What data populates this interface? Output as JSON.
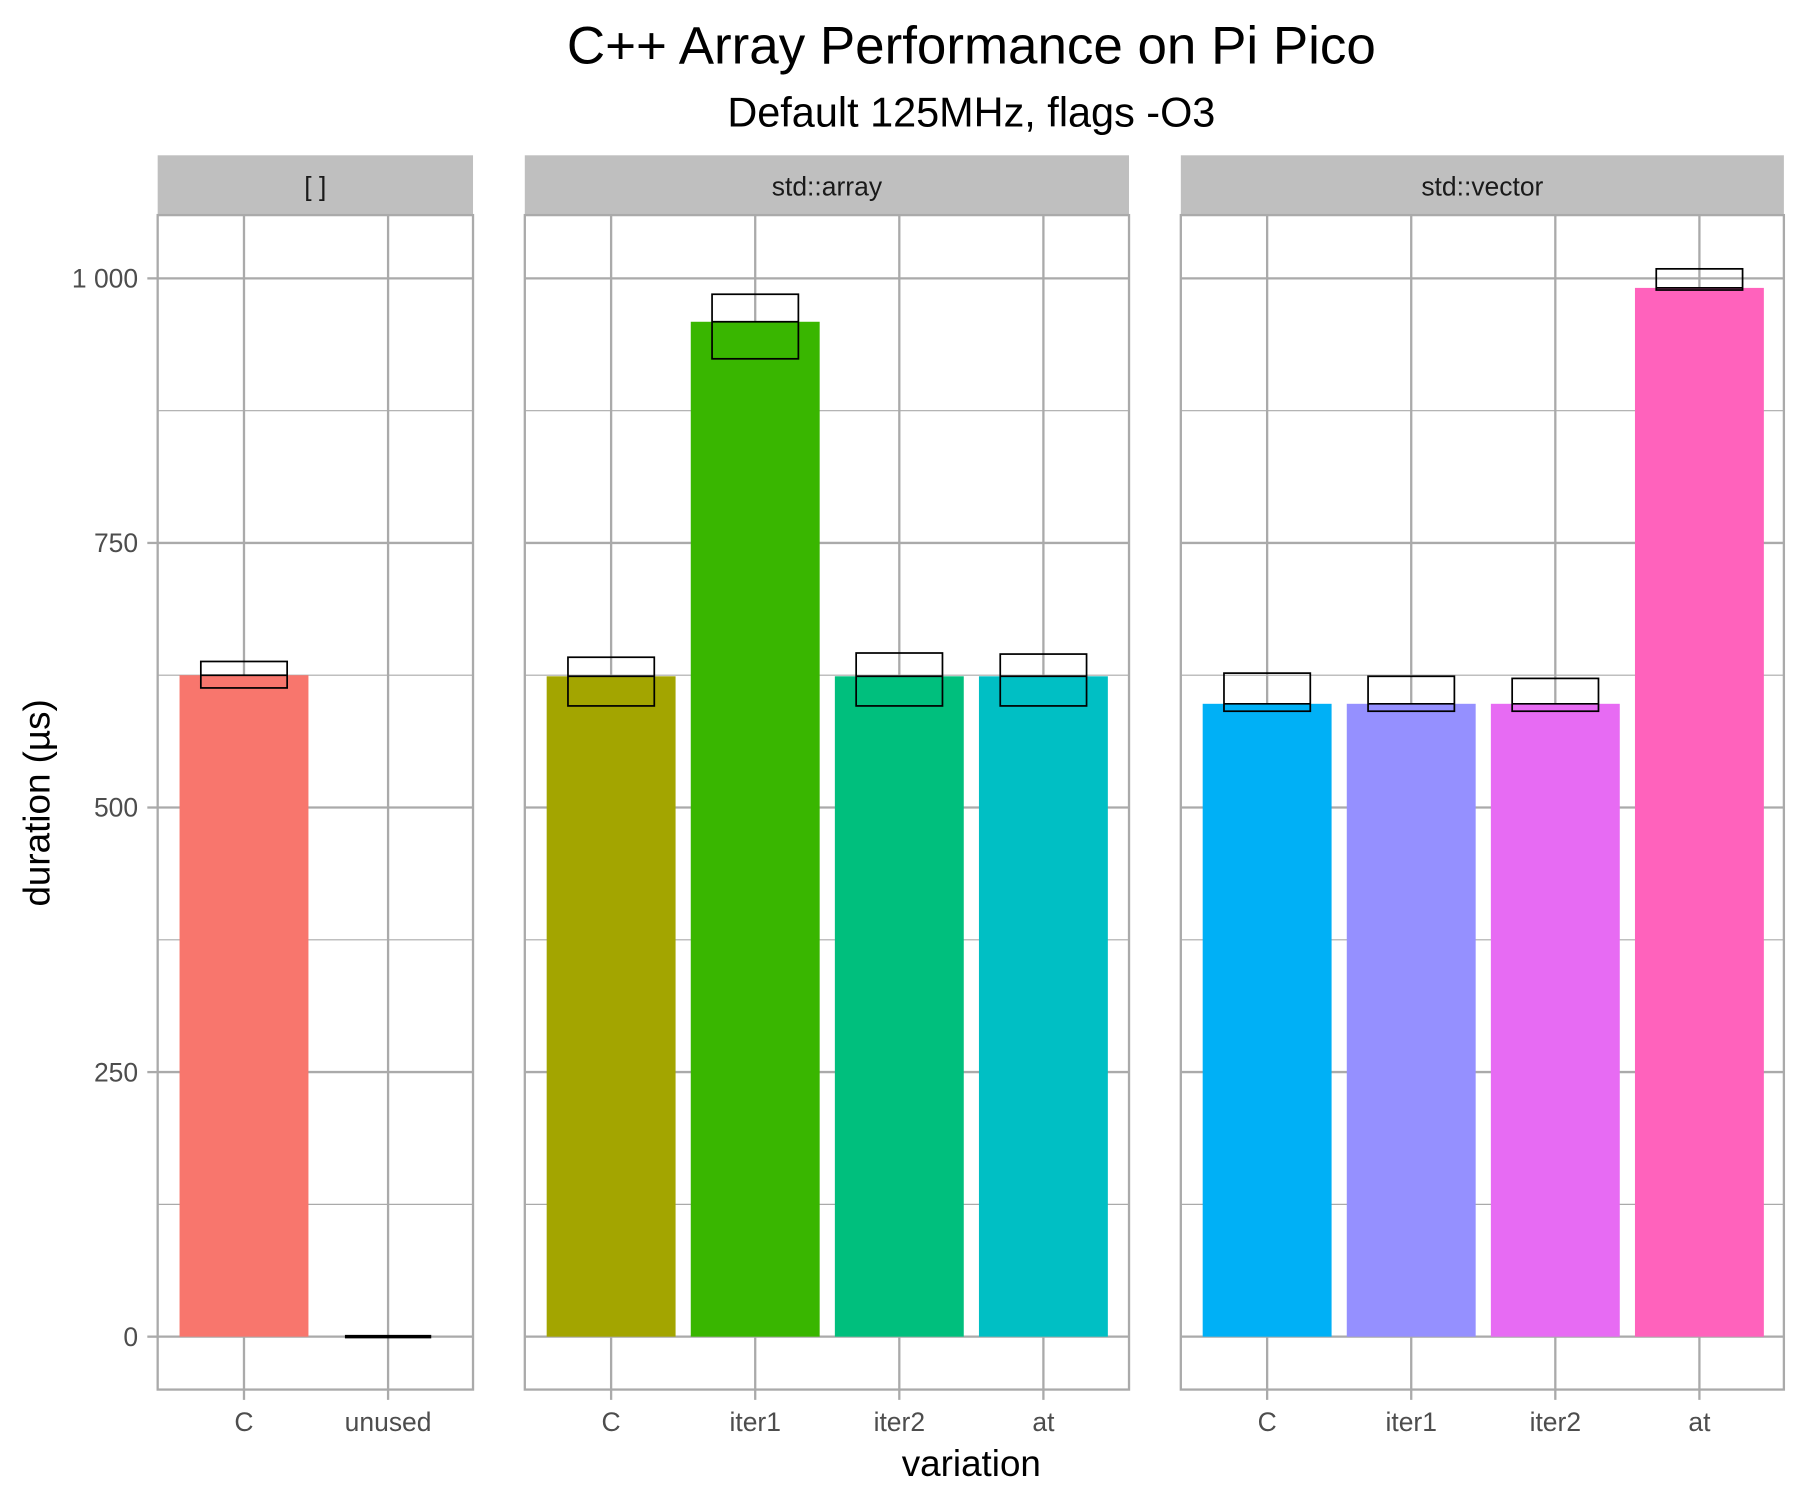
{
  "chart_data": {
    "type": "bar",
    "title": "C++ Array Performance on Pi Pico",
    "subtitle": "Default 125MHz, flags -O3",
    "xlabel": "variation",
    "ylabel": "duration (µs)",
    "ylim": [
      -50,
      1050
    ],
    "yticks": [
      0,
      250,
      500,
      750,
      1000
    ],
    "ytick_labels": [
      "0",
      "250",
      "500",
      "750",
      "1 000"
    ],
    "grid": true,
    "facets": [
      {
        "label": "[ ]",
        "categories": [
          "C",
          "unused"
        ],
        "values": [
          625,
          0
        ],
        "lower": [
          613,
          0
        ],
        "upper": [
          638,
          0
        ],
        "colors": [
          "#F8766D",
          "#D89000"
        ]
      },
      {
        "label": "std::array",
        "categories": [
          "C",
          "iter1",
          "iter2",
          "at"
        ],
        "values": [
          624,
          959,
          624,
          624
        ],
        "lower": [
          596,
          924,
          596,
          596
        ],
        "upper": [
          642,
          985,
          646,
          645
        ],
        "colors": [
          "#A3A500",
          "#39B600",
          "#00BF7D",
          "#00BFC4"
        ]
      },
      {
        "label": "std::vector",
        "categories": [
          "C",
          "iter1",
          "iter2",
          "at"
        ],
        "values": [
          598,
          598,
          598,
          991
        ],
        "lower": [
          591,
          591,
          591,
          989
        ],
        "upper": [
          627,
          624,
          622,
          1009
        ],
        "colors": [
          "#00B0F6",
          "#9590FF",
          "#E76BF3",
          "#FF62BC"
        ]
      }
    ]
  }
}
